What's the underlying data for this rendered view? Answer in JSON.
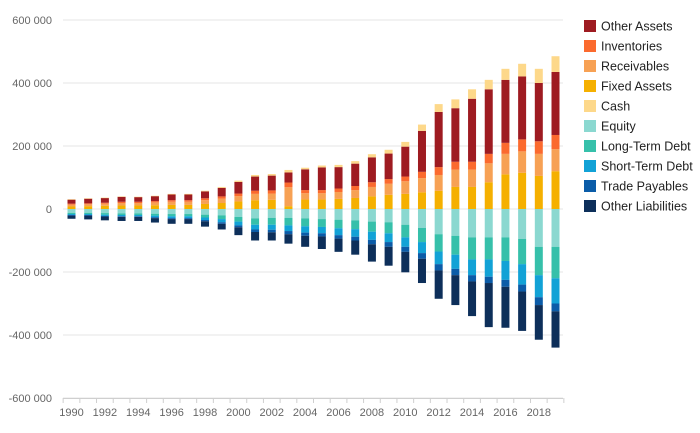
{
  "chart_data": {
    "type": "bar",
    "stacked": true,
    "title": "",
    "xlabel": "",
    "ylabel": "",
    "ylim": [
      -600000,
      600000
    ],
    "y_ticks": [
      600000,
      400000,
      200000,
      0,
      -200000,
      -400000,
      -600000
    ],
    "y_tick_labels": [
      "600 000",
      "400 000",
      "200 000",
      "0",
      "-200 000",
      "-400 000",
      "-600 000"
    ],
    "x_tick_labels": [
      "1990",
      "1992",
      "1994",
      "1996",
      "1998",
      "2000",
      "2002",
      "2004",
      "2006",
      "2008",
      "2010",
      "2012",
      "2014",
      "2016",
      "2018"
    ],
    "categories": [
      "1990",
      "1991",
      "1992",
      "1993",
      "1994",
      "1995",
      "1996",
      "1997",
      "1998",
      "1999",
      "2000",
      "2001",
      "2002",
      "2003",
      "2004",
      "2005",
      "2006",
      "2007",
      "2008",
      "2009",
      "2010",
      "2011",
      "2012",
      "2013",
      "2014",
      "2015",
      "2016",
      "2017",
      "2018",
      "2019"
    ],
    "grid": true,
    "legend_position": "right",
    "series": [
      {
        "name": "Fixed Assets",
        "color": "#f5b000",
        "side": "asset",
        "values": [
          8000,
          9000,
          10000,
          11000,
          11000,
          12000,
          13000,
          13000,
          16000,
          19000,
          24000,
          28000,
          29000,
          9000,
          30000,
          30000,
          32000,
          35000,
          40000,
          45000,
          48000,
          53000,
          58000,
          70000,
          70000,
          85000,
          110000,
          115000,
          105000,
          120000
        ]
      },
      {
        "name": "Receivables",
        "color": "#f7a154",
        "side": "asset",
        "values": [
          6000,
          6000,
          7000,
          8000,
          8000,
          9000,
          10000,
          10000,
          12000,
          14000,
          17000,
          20000,
          20000,
          60000,
          20000,
          20000,
          22000,
          25000,
          30000,
          35000,
          40000,
          45000,
          50000,
          55000,
          55000,
          60000,
          65000,
          68000,
          70000,
          70000
        ]
      },
      {
        "name": "Inventories",
        "color": "#fb6a2e",
        "side": "asset",
        "values": [
          3000,
          3000,
          3000,
          4000,
          4000,
          4000,
          5000,
          5000,
          6000,
          7000,
          8000,
          10000,
          10000,
          15000,
          10000,
          10000,
          11000,
          13000,
          15000,
          15000,
          15000,
          20000,
          25000,
          25000,
          25000,
          30000,
          35000,
          38000,
          40000,
          45000
        ]
      },
      {
        "name": "Other Assets",
        "color": "#9e1b21",
        "side": "asset",
        "values": [
          13000,
          15000,
          15000,
          16000,
          15000,
          16000,
          18000,
          18000,
          22000,
          27000,
          37000,
          45000,
          47000,
          32000,
          66000,
          72000,
          68000,
          71000,
          79000,
          81000,
          95000,
          130000,
          175000,
          170000,
          200000,
          205000,
          200000,
          200000,
          185000,
          200000
        ]
      },
      {
        "name": "Cash",
        "color": "#fdd88a",
        "side": "asset",
        "values": [
          1000,
          1000,
          1000,
          1000,
          1000,
          1000,
          2000,
          2000,
          2000,
          3000,
          4000,
          5000,
          5000,
          8000,
          5000,
          6000,
          7000,
          8000,
          10000,
          12000,
          15000,
          20000,
          25000,
          28000,
          30000,
          30000,
          35000,
          40000,
          45000,
          50000
        ]
      },
      {
        "name": "Equity",
        "color": "#8bd8d0",
        "side": "liability",
        "values": [
          -12000,
          -12000,
          -13000,
          -14000,
          -14000,
          -15000,
          -16000,
          -16000,
          -18000,
          -20000,
          -25000,
          -30000,
          -28000,
          -28000,
          -30000,
          -32000,
          -34000,
          -36000,
          -40000,
          -42000,
          -50000,
          -60000,
          -80000,
          -85000,
          -90000,
          -90000,
          -90000,
          -95000,
          -120000,
          -120000
        ]
      },
      {
        "name": "Long-Term Debt",
        "color": "#36c0aa",
        "side": "liability",
        "values": [
          -4000,
          -4000,
          -5000,
          -5000,
          -5000,
          -6000,
          -7000,
          -7000,
          -9000,
          -12000,
          -15000,
          -20000,
          -22000,
          -24000,
          -25000,
          -25000,
          -27000,
          -28000,
          -32000,
          -35000,
          -40000,
          -45000,
          -55000,
          -60000,
          -70000,
          -70000,
          -75000,
          -80000,
          -90000,
          -100000
        ]
      },
      {
        "name": "Short-Term Debt",
        "color": "#12a2d6",
        "side": "liability",
        "values": [
          -3000,
          -3000,
          -4000,
          -4000,
          -4000,
          -5000,
          -6000,
          -6000,
          -8000,
          -10000,
          -12000,
          -15000,
          -16000,
          -18000,
          -20000,
          -20000,
          -22000,
          -24000,
          -26000,
          -28000,
          -30000,
          -35000,
          -40000,
          -45000,
          -50000,
          -55000,
          -60000,
          -65000,
          -70000,
          -80000
        ]
      },
      {
        "name": "Trade Payables",
        "color": "#0b5ca8",
        "side": "liability",
        "values": [
          -2000,
          -2000,
          -2000,
          -2000,
          -2000,
          -3000,
          -3000,
          -3000,
          -4000,
          -5000,
          -6000,
          -8000,
          -8000,
          -10000,
          -10000,
          -10000,
          -11000,
          -12000,
          -14000,
          -15000,
          -16000,
          -18000,
          -20000,
          -20000,
          -20000,
          -20000,
          -22000,
          -22000,
          -25000,
          -25000
        ]
      },
      {
        "name": "Other Liabilities",
        "color": "#0d2f5a",
        "side": "liability",
        "values": [
          -10000,
          -12000,
          -12000,
          -13000,
          -13000,
          -14000,
          -15000,
          -15000,
          -17000,
          -18000,
          -25000,
          -27000,
          -26000,
          -30000,
          -35000,
          -40000,
          -42000,
          -45000,
          -55000,
          -60000,
          -65000,
          -77000,
          -90000,
          -95000,
          -110000,
          -140000,
          -130000,
          -125000,
          -110000,
          -115000
        ]
      }
    ],
    "legend_order": [
      "Other Assets",
      "Inventories",
      "Receivables",
      "Fixed Assets",
      "Cash",
      "Equity",
      "Long-Term Debt",
      "Short-Term Debt",
      "Trade Payables",
      "Other Liabilities"
    ]
  }
}
